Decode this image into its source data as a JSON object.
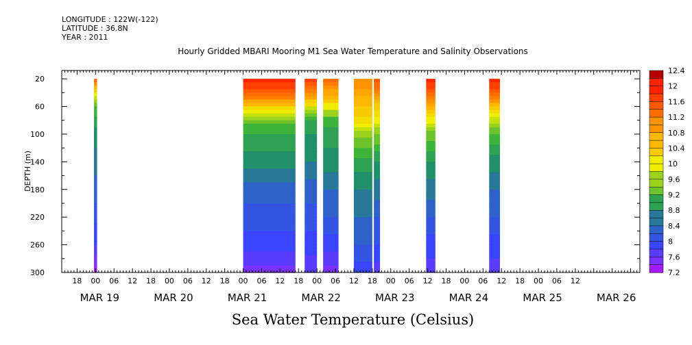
{
  "header": {
    "longitude": "LONGITUDE : 122W(-122)",
    "latitude": "LATITUDE : 36.8N",
    "year": "YEAR : 2011",
    "title": "Hourly Gridded MBARI Mooring M1 Sea Water Temperature and Salinity Observations"
  },
  "footer": {
    "variable_label": "Sea Water Temperature (Celsius)"
  },
  "chart_data": {
    "type": "heatmap",
    "title": "Hourly Gridded MBARI Mooring M1 Sea Water Temperature and Salinity Observations",
    "ylabel": "DEPTH (m)",
    "xlabel": "",
    "ylim": [
      300,
      20
    ],
    "yticks": [
      20,
      60,
      100,
      140,
      180,
      220,
      260,
      300
    ],
    "x_hour_ticks": [
      "18",
      "00",
      "06",
      "12",
      "18",
      "00",
      "06",
      "12",
      "18",
      "00",
      "06",
      "12",
      "18",
      "00",
      "06",
      "12",
      "18",
      "00",
      "06",
      "12",
      "18",
      "00",
      "06",
      "12",
      "18",
      "00",
      "06",
      "12"
    ],
    "x_hour_tick_values": [
      -6,
      0,
      6,
      12,
      18,
      24,
      30,
      36,
      42,
      48,
      54,
      60,
      66,
      72,
      78,
      84,
      90,
      96,
      102,
      108,
      114,
      120,
      126,
      132,
      138,
      144,
      150,
      156
    ],
    "x_date_labels": [
      {
        "label": "MAR 19",
        "hour": 0
      },
      {
        "label": "MAR 20",
        "hour": 24
      },
      {
        "label": "MAR 21",
        "hour": 48
      },
      {
        "label": "MAR 22",
        "hour": 72
      },
      {
        "label": "MAR 23",
        "hour": 96
      },
      {
        "label": "MAR 24",
        "hour": 120
      },
      {
        "label": "MAR 25",
        "hour": 144
      },
      {
        "label": "MAR 26",
        "hour": 168
      }
    ],
    "colorbar_labels": [
      "12.4",
      "12",
      "11.6",
      "11.2",
      "10.8",
      "10.4",
      "10",
      "9.6",
      "9.2",
      "8.8",
      "8.4",
      "8",
      "7.6",
      "7.2"
    ],
    "colorbar_min": 7.2,
    "colorbar_max": 12.4,
    "colorbar_step": 0.2,
    "colors": {
      "stops": [
        "#cc00ff",
        "#7a33ff",
        "#3a45ff",
        "#2f62c8",
        "#208f6a",
        "#3db33a",
        "#9ad21e",
        "#f0ee00",
        "#ffa600",
        "#ff5a00",
        "#ff2400",
        "#b40000"
      ],
      "stop_values": [
        7.2,
        7.6,
        8.0,
        8.4,
        8.8,
        9.2,
        9.6,
        10.0,
        10.8,
        11.6,
        12.0,
        12.4
      ]
    },
    "data_segments": [
      {
        "start": -0.5,
        "end": 0.5,
        "profile": [
          [
            20,
            11.5
          ],
          [
            40,
            10.2
          ],
          [
            60,
            9.3
          ],
          [
            100,
            8.8
          ],
          [
            140,
            8.6
          ],
          [
            200,
            8.3
          ],
          [
            260,
            7.9
          ],
          [
            300,
            7.4
          ]
        ]
      },
      {
        "start": 48.0,
        "end": 65.0,
        "profile": [
          [
            20,
            12.0
          ],
          [
            40,
            11.6
          ],
          [
            60,
            10.4
          ],
          [
            80,
            9.4
          ],
          [
            100,
            9.1
          ],
          [
            140,
            8.8
          ],
          [
            180,
            8.4
          ],
          [
            220,
            8.2
          ],
          [
            260,
            8.0
          ],
          [
            300,
            7.6
          ]
        ]
      },
      {
        "start": 68.0,
        "end": 72.0,
        "profile": [
          [
            20,
            11.9
          ],
          [
            40,
            11.2
          ],
          [
            60,
            10.0
          ],
          [
            80,
            9.1
          ],
          [
            100,
            8.9
          ],
          [
            140,
            8.7
          ],
          [
            180,
            8.4
          ],
          [
            220,
            8.2
          ],
          [
            260,
            8.0
          ],
          [
            300,
            7.7
          ]
        ]
      },
      {
        "start": 74.0,
        "end": 79.0,
        "profile": [
          [
            20,
            11.4
          ],
          [
            40,
            10.8
          ],
          [
            60,
            10.0
          ],
          [
            80,
            9.2
          ],
          [
            100,
            9.0
          ],
          [
            140,
            8.8
          ],
          [
            180,
            8.5
          ],
          [
            220,
            8.3
          ],
          [
            260,
            8.0
          ],
          [
            300,
            7.6
          ]
        ]
      },
      {
        "start": 84.0,
        "end": 90.0,
        "profile": [
          [
            20,
            11.1
          ],
          [
            40,
            10.8
          ],
          [
            60,
            10.5
          ],
          [
            80,
            10.2
          ],
          [
            100,
            9.6
          ],
          [
            140,
            9.0
          ],
          [
            180,
            8.7
          ],
          [
            220,
            8.5
          ],
          [
            260,
            8.3
          ],
          [
            300,
            8.0
          ]
        ]
      },
      {
        "start": 90.5,
        "end": 92.5,
        "profile": [
          [
            20,
            11.7
          ],
          [
            40,
            11.1
          ],
          [
            60,
            10.4
          ],
          [
            80,
            10.0
          ],
          [
            100,
            9.5
          ],
          [
            140,
            8.9
          ],
          [
            180,
            8.6
          ],
          [
            220,
            8.3
          ],
          [
            260,
            8.1
          ],
          [
            300,
            7.8
          ]
        ]
      },
      {
        "start": 107.5,
        "end": 110.5,
        "profile": [
          [
            20,
            12.0
          ],
          [
            40,
            11.6
          ],
          [
            60,
            10.6
          ],
          [
            80,
            10.0
          ],
          [
            100,
            9.4
          ],
          [
            140,
            8.9
          ],
          [
            180,
            8.6
          ],
          [
            220,
            8.3
          ],
          [
            260,
            8.0
          ],
          [
            300,
            7.8
          ]
        ]
      },
      {
        "start": 128.0,
        "end": 131.5,
        "profile": [
          [
            20,
            12.0
          ],
          [
            40,
            11.6
          ],
          [
            60,
            10.5
          ],
          [
            80,
            9.8
          ],
          [
            100,
            9.3
          ],
          [
            140,
            8.8
          ],
          [
            180,
            8.5
          ],
          [
            220,
            8.3
          ],
          [
            260,
            8.0
          ],
          [
            300,
            7.8
          ]
        ]
      }
    ],
    "grid": false,
    "legend": "colorbar right"
  }
}
